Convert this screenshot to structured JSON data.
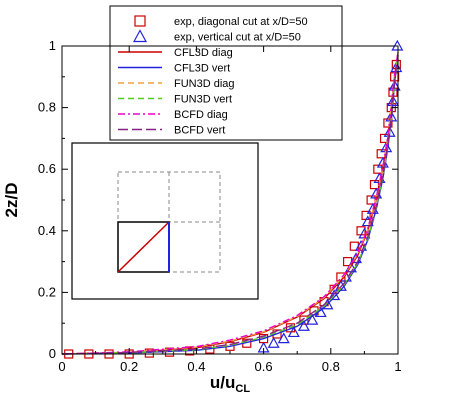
{
  "chart_data": {
    "type": "line",
    "xlabel": "u/u",
    "xlabel_sub": "CL",
    "ylabel": "2z/D",
    "xlim": [
      0,
      1
    ],
    "ylim": [
      0,
      1
    ],
    "x_ticks": [
      "0",
      "0.2",
      "0.4",
      "0.6",
      "0.8",
      "1"
    ],
    "y_ticks": [
      "0",
      "0.2",
      "0.4",
      "0.6",
      "0.8",
      "1"
    ],
    "grid": false,
    "legend_position": "top-center",
    "inset": {
      "description_visible": false
    },
    "series": [
      {
        "name": "exp, diagonal cut at x/D=50",
        "kind": "scatter",
        "marker": "square",
        "color": "#cc0000",
        "points": [
          [
            0.02,
            0.0
          ],
          [
            0.08,
            0.0
          ],
          [
            0.14,
            0.0
          ],
          [
            0.2,
            0.0
          ],
          [
            0.26,
            0.003
          ],
          [
            0.32,
            0.006
          ],
          [
            0.38,
            0.01
          ],
          [
            0.44,
            0.016
          ],
          [
            0.5,
            0.025
          ],
          [
            0.55,
            0.035
          ],
          [
            0.6,
            0.05
          ],
          [
            0.64,
            0.065
          ],
          [
            0.68,
            0.085
          ],
          [
            0.72,
            0.11
          ],
          [
            0.75,
            0.14
          ],
          [
            0.78,
            0.17
          ],
          [
            0.81,
            0.21
          ],
          [
            0.83,
            0.25
          ],
          [
            0.85,
            0.3
          ],
          [
            0.87,
            0.35
          ],
          [
            0.89,
            0.4
          ],
          [
            0.905,
            0.45
          ],
          [
            0.92,
            0.5
          ],
          [
            0.93,
            0.55
          ],
          [
            0.94,
            0.6
          ],
          [
            0.95,
            0.65
          ],
          [
            0.96,
            0.7
          ],
          [
            0.97,
            0.75
          ],
          [
            0.98,
            0.8
          ],
          [
            0.985,
            0.85
          ],
          [
            0.99,
            0.9
          ],
          [
            0.995,
            0.94
          ]
        ]
      },
      {
        "name": "exp, vertical cut at x/D=50",
        "kind": "scatter",
        "marker": "triangle",
        "color": "#2222dd",
        "points": [
          [
            0.6,
            0.02
          ],
          [
            0.63,
            0.035
          ],
          [
            0.66,
            0.05
          ],
          [
            0.69,
            0.07
          ],
          [
            0.72,
            0.09
          ],
          [
            0.745,
            0.11
          ],
          [
            0.77,
            0.135
          ],
          [
            0.79,
            0.16
          ],
          [
            0.81,
            0.19
          ],
          [
            0.83,
            0.22
          ],
          [
            0.845,
            0.25
          ],
          [
            0.86,
            0.28
          ],
          [
            0.875,
            0.31
          ],
          [
            0.89,
            0.35
          ],
          [
            0.9,
            0.39
          ],
          [
            0.91,
            0.43
          ],
          [
            0.925,
            0.47
          ],
          [
            0.935,
            0.52
          ],
          [
            0.945,
            0.57
          ],
          [
            0.955,
            0.62
          ],
          [
            0.965,
            0.67
          ],
          [
            0.975,
            0.72
          ],
          [
            0.98,
            0.77
          ],
          [
            0.985,
            0.82
          ],
          [
            0.99,
            0.87
          ],
          [
            0.995,
            0.93
          ],
          [
            0.998,
            1.0
          ]
        ]
      },
      {
        "name": "CFL3D diag",
        "kind": "line",
        "dash": "solid",
        "color": "#cc0000",
        "points": [
          [
            0,
            0
          ],
          [
            0.2,
            0.005
          ],
          [
            0.4,
            0.02
          ],
          [
            0.5,
            0.04
          ],
          [
            0.6,
            0.07
          ],
          [
            0.7,
            0.12
          ],
          [
            0.78,
            0.18
          ],
          [
            0.84,
            0.25
          ],
          [
            0.88,
            0.32
          ],
          [
            0.91,
            0.4
          ],
          [
            0.935,
            0.5
          ],
          [
            0.955,
            0.6
          ],
          [
            0.97,
            0.7
          ],
          [
            0.98,
            0.8
          ],
          [
            0.99,
            0.9
          ],
          [
            1.0,
            0.98
          ]
        ]
      },
      {
        "name": "CFL3D vert",
        "kind": "line",
        "dash": "solid",
        "color": "#2222dd",
        "points": [
          [
            0,
            0
          ],
          [
            0.2,
            0.003
          ],
          [
            0.4,
            0.012
          ],
          [
            0.5,
            0.025
          ],
          [
            0.6,
            0.05
          ],
          [
            0.7,
            0.09
          ],
          [
            0.78,
            0.15
          ],
          [
            0.84,
            0.22
          ],
          [
            0.88,
            0.29
          ],
          [
            0.91,
            0.37
          ],
          [
            0.935,
            0.47
          ],
          [
            0.955,
            0.57
          ],
          [
            0.97,
            0.67
          ],
          [
            0.982,
            0.78
          ],
          [
            0.99,
            0.88
          ],
          [
            1.0,
            0.97
          ]
        ]
      },
      {
        "name": "FUN3D diag",
        "kind": "line",
        "dash": "dashed",
        "color": "#f0a040",
        "points": [
          [
            0,
            0
          ],
          [
            0.2,
            0.006
          ],
          [
            0.4,
            0.022
          ],
          [
            0.5,
            0.042
          ],
          [
            0.6,
            0.072
          ],
          [
            0.7,
            0.122
          ],
          [
            0.78,
            0.183
          ],
          [
            0.84,
            0.255
          ],
          [
            0.88,
            0.325
          ],
          [
            0.91,
            0.405
          ],
          [
            0.935,
            0.505
          ],
          [
            0.955,
            0.605
          ],
          [
            0.97,
            0.705
          ],
          [
            0.98,
            0.805
          ],
          [
            0.99,
            0.905
          ],
          [
            1.0,
            0.98
          ]
        ]
      },
      {
        "name": "FUN3D vert",
        "kind": "line",
        "dash": "dashed",
        "color": "#55cc22",
        "points": [
          [
            0,
            0
          ],
          [
            0.2,
            0.004
          ],
          [
            0.4,
            0.014
          ],
          [
            0.5,
            0.028
          ],
          [
            0.6,
            0.055
          ],
          [
            0.7,
            0.095
          ],
          [
            0.78,
            0.155
          ],
          [
            0.84,
            0.225
          ],
          [
            0.88,
            0.295
          ],
          [
            0.91,
            0.375
          ],
          [
            0.935,
            0.475
          ],
          [
            0.955,
            0.575
          ],
          [
            0.97,
            0.675
          ],
          [
            0.982,
            0.785
          ],
          [
            0.99,
            0.885
          ],
          [
            1.0,
            0.97
          ]
        ]
      },
      {
        "name": "BCFD diag",
        "kind": "line",
        "dash": "dashdot",
        "color": "#ee00cc",
        "points": [
          [
            0,
            0
          ],
          [
            0.2,
            0.007
          ],
          [
            0.4,
            0.024
          ],
          [
            0.5,
            0.045
          ],
          [
            0.6,
            0.075
          ],
          [
            0.7,
            0.125
          ],
          [
            0.78,
            0.186
          ],
          [
            0.84,
            0.258
          ],
          [
            0.88,
            0.328
          ],
          [
            0.91,
            0.408
          ],
          [
            0.935,
            0.508
          ],
          [
            0.955,
            0.608
          ],
          [
            0.97,
            0.708
          ],
          [
            0.98,
            0.808
          ],
          [
            0.99,
            0.908
          ],
          [
            1.0,
            0.98
          ]
        ]
      },
      {
        "name": "BCFD vert",
        "kind": "line",
        "dash": "dashed-long",
        "color": "#882288",
        "points": [
          [
            0,
            0
          ],
          [
            0.2,
            0.005
          ],
          [
            0.4,
            0.016
          ],
          [
            0.5,
            0.031
          ],
          [
            0.6,
            0.058
          ],
          [
            0.7,
            0.1
          ],
          [
            0.78,
            0.16
          ],
          [
            0.84,
            0.23
          ],
          [
            0.88,
            0.3
          ],
          [
            0.91,
            0.38
          ],
          [
            0.935,
            0.48
          ],
          [
            0.955,
            0.58
          ],
          [
            0.97,
            0.68
          ],
          [
            0.982,
            0.79
          ],
          [
            0.99,
            0.89
          ],
          [
            1.0,
            0.97
          ]
        ]
      }
    ]
  }
}
